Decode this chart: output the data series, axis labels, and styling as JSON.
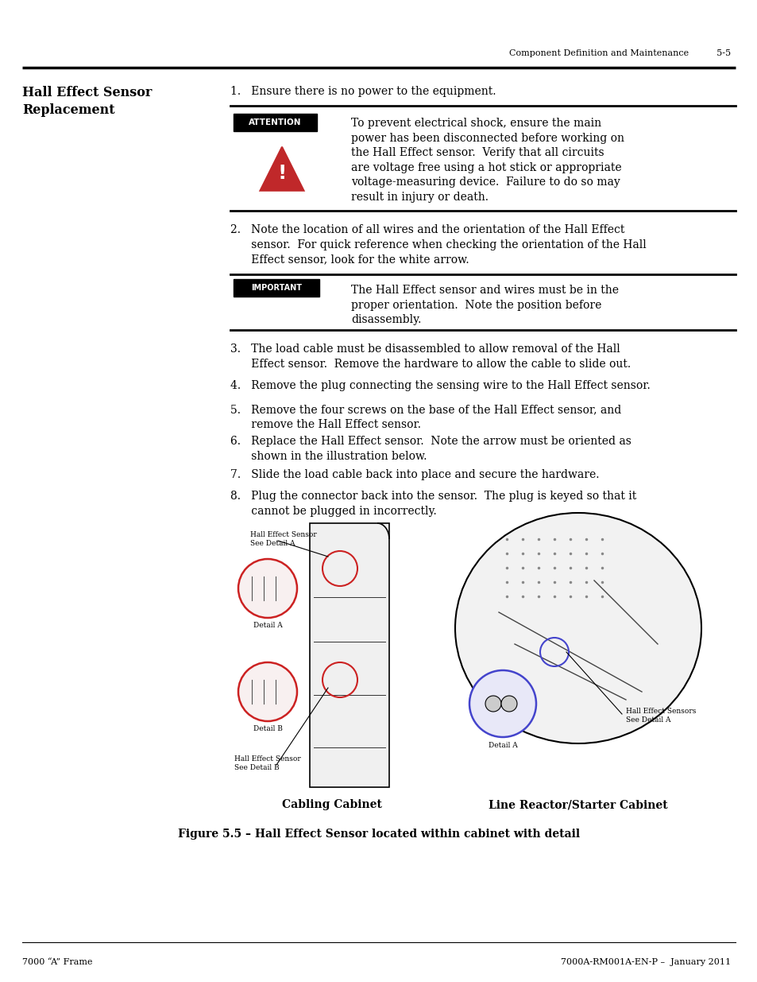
{
  "page_header_text": "Component Definition and Maintenance",
  "page_header_number": "5-5",
  "section_title_line1": "Hall Effect Sensor",
  "section_title_line2": "Replacement",
  "attention_text": "To prevent electrical shock, ensure the main\npower has been disconnected before working on\nthe Hall Effect sensor.  Verify that all circuits\nare voltage free using a hot stick or appropriate\nvoltage-measuring device.  Failure to do so may\nresult in injury or death.",
  "important_text": "The Hall Effect sensor and wires must be in the\nproper orientation.  Note the position before\ndisassembly.",
  "figure_caption": "Figure 5.5 – Hall Effect Sensor located within cabinet with detail",
  "cabling_label": "Cabling Cabinet",
  "line_reactor_label": "Line Reactor/Starter Cabinet",
  "footer_left": "7000 “A” Frame",
  "footer_right": "7000A-RM001A-EN-P –  January 2011",
  "bg_color": "#ffffff",
  "red_circle": "#cc2222",
  "blue_circle": "#4444cc",
  "warn_red": "#c0282a"
}
